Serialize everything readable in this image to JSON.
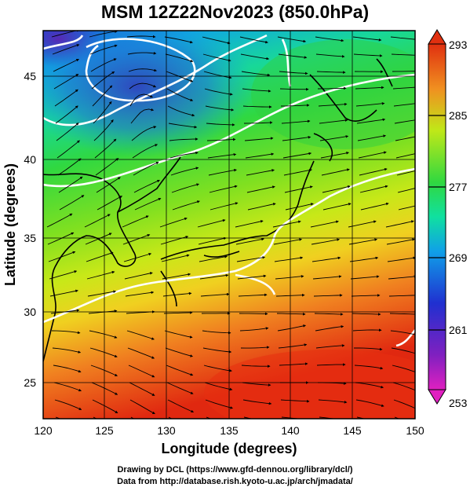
{
  "title": "MSM 12Z22Nov2023 (850.0hPa)",
  "x_axis": {
    "label": "Longitude (degrees)",
    "ticks": [
      "120",
      "125",
      "130",
      "135",
      "140",
      "145",
      "150"
    ],
    "range": [
      120,
      150
    ]
  },
  "y_axis": {
    "label": "Latitude  (degrees)",
    "ticks": [
      "25",
      "30",
      "35",
      "40",
      "45"
    ],
    "range": [
      22.4,
      47.6
    ]
  },
  "colorbar": {
    "ticks": [
      "293",
      "285",
      "277",
      "269",
      "261",
      "253"
    ],
    "range": [
      253,
      293
    ]
  },
  "footer": {
    "line1": "Drawing by DCL (https://www.gfd-dennou.org/library/dcl/)",
    "line2": "Data from http://database.rish.kyoto-u.ac.jp/arch/jmadata/"
  },
  "colors": {
    "cold": "#4030c0",
    "warm": "#e02810",
    "mid": "#40d040"
  }
}
